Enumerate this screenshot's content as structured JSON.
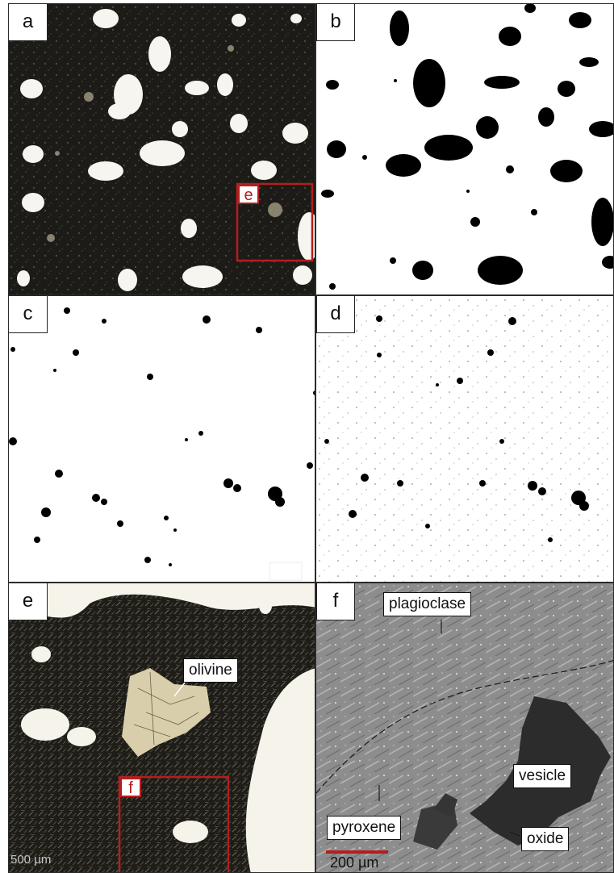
{
  "panels": {
    "a": {
      "label": "a",
      "inset_label": "e"
    },
    "b": {
      "label": "b"
    },
    "c": {
      "label": "c"
    },
    "d": {
      "label": "d"
    },
    "e": {
      "label": "e",
      "inset_label": "f",
      "callout": "olivine",
      "scale_text": "500 µm"
    },
    "f": {
      "label": "f",
      "callouts": {
        "plagioclase": "plagioclase",
        "vesicle": "vesicle",
        "pyroxene": "pyroxene",
        "oxide": "oxide"
      },
      "scale_text": "200 µm"
    }
  },
  "colors": {
    "inset_box": "#b41e1e",
    "scale_bar": "#b41e1e",
    "matrix_dark": "#1a1915",
    "vesicle_light": "#f6f4ec",
    "bse_gray": "#8a8a8a",
    "bse_vesicle": "#2c2c2c"
  }
}
